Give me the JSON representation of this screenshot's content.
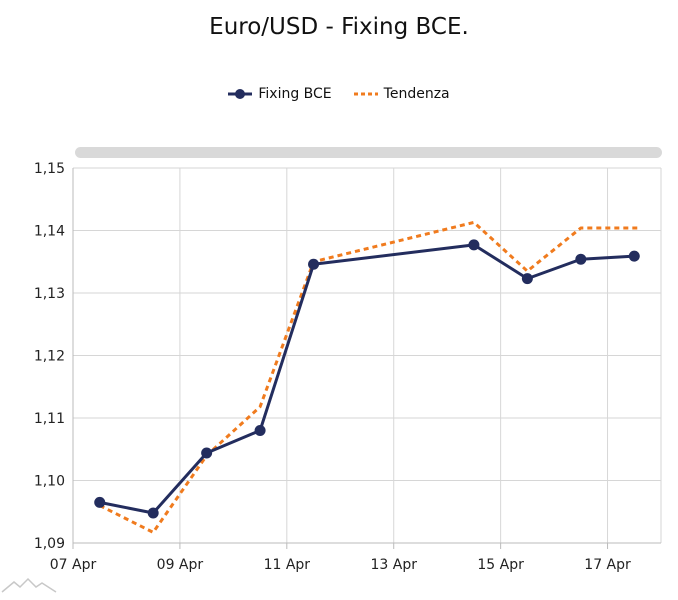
{
  "chart_data": {
    "type": "line",
    "title": "Euro/USD - Fixing BCE.",
    "x": [
      "2025-04-07",
      "2025-04-08",
      "2025-04-09",
      "2025-04-10",
      "2025-04-11",
      "2025-04-14",
      "2025-04-15",
      "2025-04-16",
      "2025-04-17"
    ],
    "x_tick_labels": [
      "07 Apr",
      "09 Apr",
      "11 Apr",
      "13 Apr",
      "15 Apr",
      "17 Apr"
    ],
    "y_tick_labels": [
      "1,09",
      "1,10",
      "1,11",
      "1,12",
      "1,13",
      "1,14",
      "1,15"
    ],
    "ylim": [
      1.09,
      1.15
    ],
    "xlim": [
      "2025-04-07",
      "2025-04-18"
    ],
    "grid": true,
    "legend_position": "top-center",
    "series": [
      {
        "name": "Fixing BCE",
        "color": "#232d5e",
        "style": "solid-with-markers",
        "values": [
          1.0965,
          1.0948,
          1.1044,
          1.108,
          1.1346,
          1.1377,
          1.1323,
          1.1354,
          1.1359
        ]
      },
      {
        "name": "Tendenza",
        "color": "#f07b1e",
        "style": "dotted",
        "values": [
          1.096,
          1.0917,
          1.104,
          1.1118,
          1.135,
          1.1413,
          1.1335,
          1.1404,
          1.1404
        ]
      }
    ],
    "scrollbar": true
  }
}
